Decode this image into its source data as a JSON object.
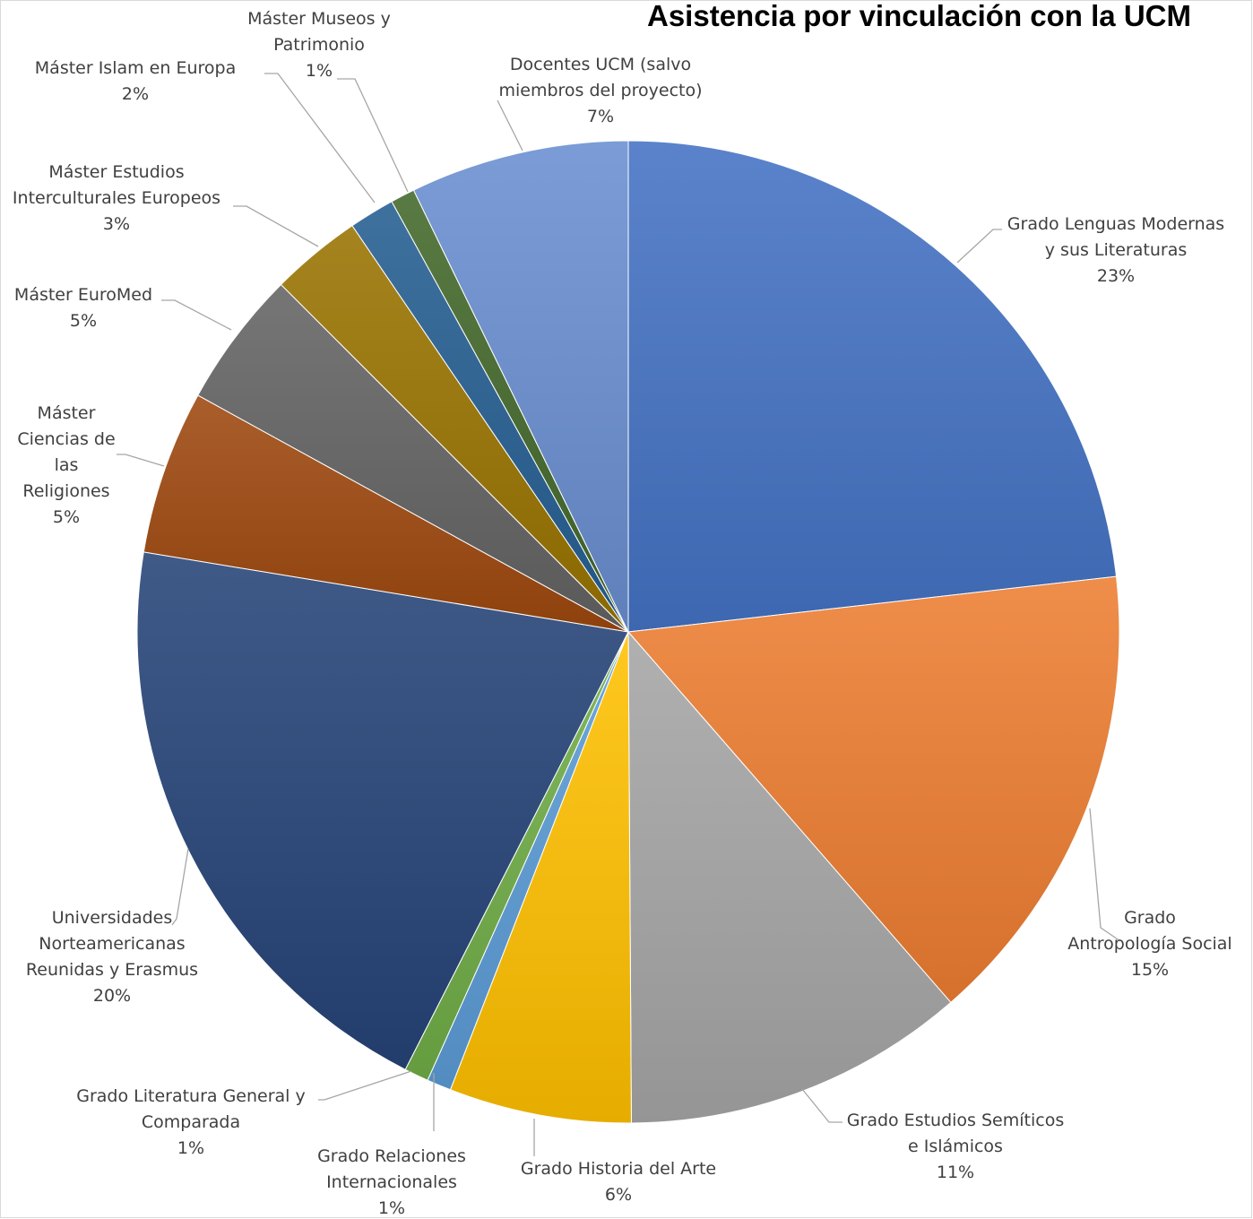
{
  "chart_data": {
    "type": "pie",
    "title": "Asistencia por vinculación con la UCM",
    "slices": [
      {
        "label": [
          "Grado Lenguas Modernas",
          "y sus Literaturas"
        ],
        "pct_label": "23%",
        "value": 23.2,
        "color": "#4472c4"
      },
      {
        "label": [
          "Grado",
          "Antropología Social"
        ],
        "pct_label": "15%",
        "value": 15.4,
        "color": "#ed7d31"
      },
      {
        "label": [
          "Grado Estudios Semíticos",
          "e Islámicos"
        ],
        "pct_label": "11%",
        "value": 11.3,
        "color": "#a5a5a5"
      },
      {
        "label": [
          "Grado Historia del Arte"
        ],
        "pct_label": "6%",
        "value": 6.0,
        "color": "#ffc000"
      },
      {
        "label": [
          "Grado Relaciones",
          "Internacionales"
        ],
        "pct_label": "1%",
        "value": 0.8,
        "color": "#5b9bd5"
      },
      {
        "label": [
          "Grado Literatura General y",
          "Comparada"
        ],
        "pct_label": "1%",
        "value": 0.8,
        "color": "#70ad47"
      },
      {
        "label": [
          "Universidades",
          "Norteamericanas",
          "Reunidas y Erasmus"
        ],
        "pct_label": "20%",
        "value": 20.1,
        "color": "#264478"
      },
      {
        "label": [
          "Máster",
          "Ciencias de",
          "las",
          "Religiones"
        ],
        "pct_label": "5%",
        "value": 5.4,
        "color": "#9e480e"
      },
      {
        "label": [
          "Máster EuroMed"
        ],
        "pct_label": "5%",
        "value": 4.5,
        "color": "#636363"
      },
      {
        "label": [
          "Máster Estudios",
          "Interculturales Europeos"
        ],
        "pct_label": "3%",
        "value": 3.0,
        "color": "#997300"
      },
      {
        "label": [
          "Máster Islam en Europa"
        ],
        "pct_label": "2%",
        "value": 1.5,
        "color": "#255e91"
      },
      {
        "label": [
          "Máster Museos y",
          "Patrimonio"
        ],
        "pct_label": "1%",
        "value": 0.8,
        "color": "#43682b"
      },
      {
        "label": [
          "Docentes UCM (salvo",
          "miembros del proyecto)"
        ],
        "pct_label": "7%",
        "value": 7.2,
        "color": "#698ed0"
      }
    ]
  }
}
